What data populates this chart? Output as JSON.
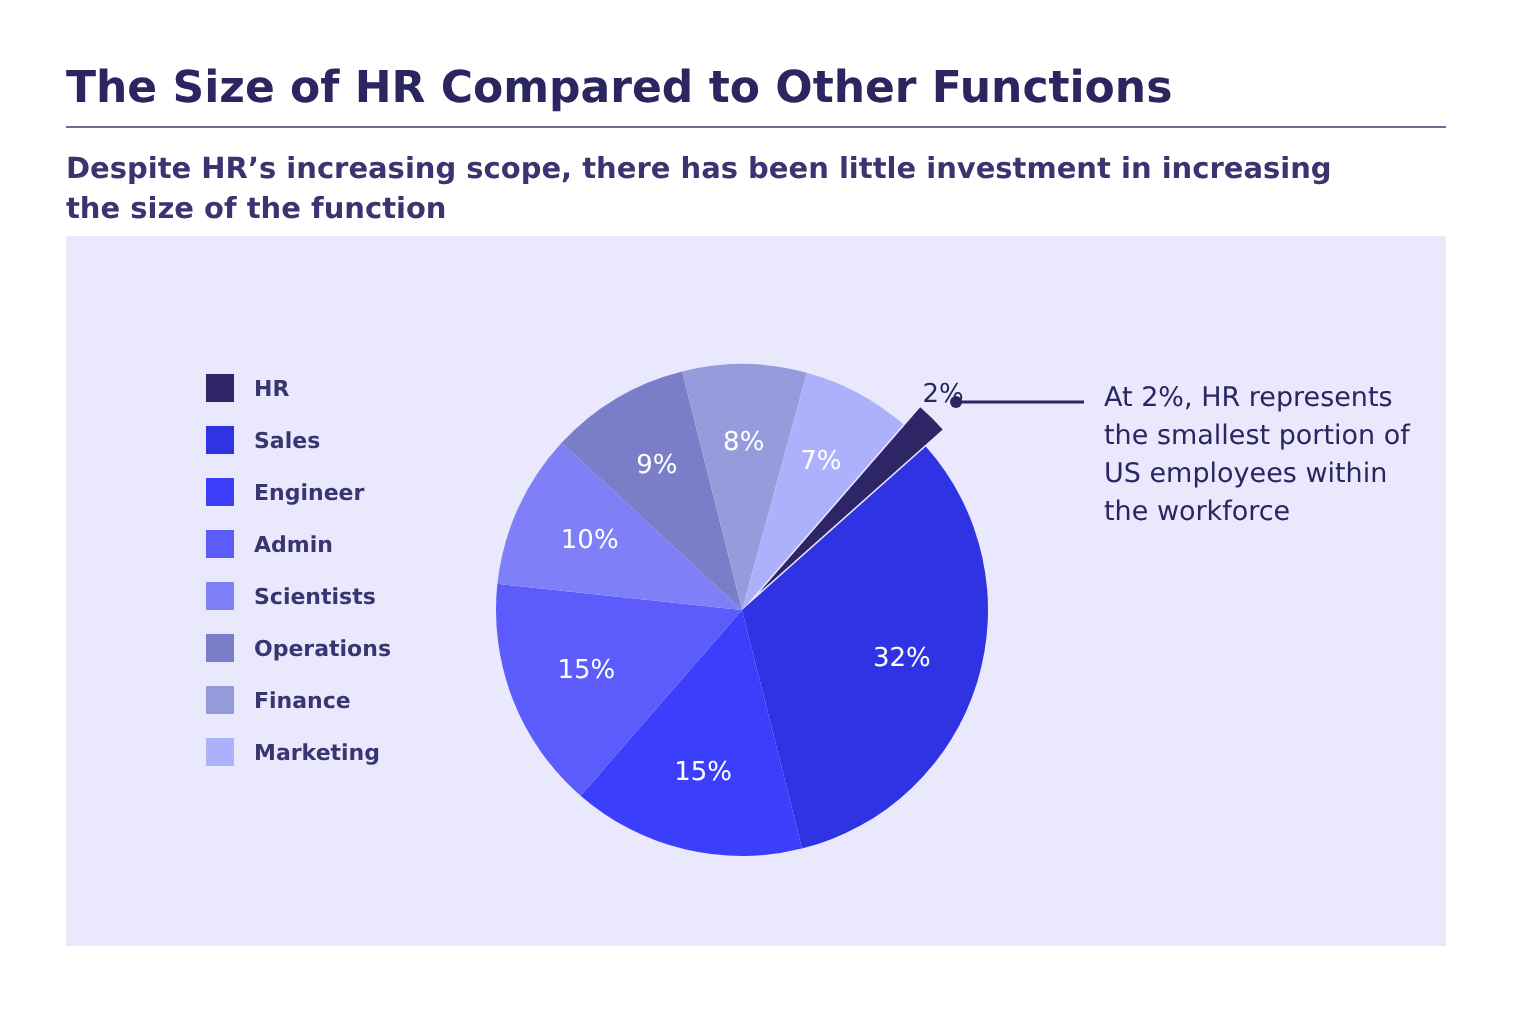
{
  "chart_data": {
    "type": "pie",
    "title": "The Size of HR Compared to Other Functions",
    "subtitle": "Despite HR’s increasing scope, there has been little investment in increasing the size of the function",
    "categories": [
      "HR",
      "Sales",
      "Engineer",
      "Admin",
      "Scientists",
      "Operations",
      "Finance",
      "Marketing"
    ],
    "values": [
      2,
      32,
      15,
      15,
      10,
      9,
      8,
      7
    ],
    "colors": [
      "#2e2566",
      "#3033e3",
      "#3b3ffb",
      "#5b5cfb",
      "#7f80f8",
      "#7a7ec8",
      "#959cdc",
      "#adb1fb"
    ],
    "value_labels": [
      "2%",
      "32%",
      "15%",
      "15%",
      "10%",
      "9%",
      "8%",
      "7%"
    ],
    "legend": "left",
    "annotations": [
      "At 2%, HR represents the smallest portion of US employees within the workforce"
    ]
  }
}
